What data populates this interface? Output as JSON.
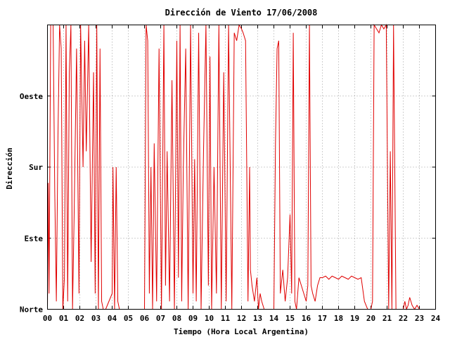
{
  "chart_data": {
    "type": "line",
    "title": "Dirección de Viento 17/06/2008",
    "xlabel": "Tiempo (Hora Local Argentina)",
    "ylabel": "Dirección",
    "xlim": [
      0,
      24
    ],
    "ylim": [
      0,
      360
    ],
    "x_ticks": [
      "00",
      "01",
      "02",
      "03",
      "04",
      "05",
      "06",
      "07",
      "08",
      "09",
      "10",
      "11",
      "12",
      "13",
      "14",
      "15",
      "16",
      "17",
      "18",
      "19",
      "20",
      "21",
      "22",
      "23",
      "24"
    ],
    "y_ticks": [
      {
        "value": 0,
        "label": "Norte"
      },
      {
        "value": 90,
        "label": "Este"
      },
      {
        "value": 180,
        "label": "Sur"
      },
      {
        "value": 270,
        "label": "Oeste"
      }
    ],
    "grid": true,
    "colors": {
      "series": "#e00000",
      "grid": "#a0a0a0",
      "frame": "#000000"
    },
    "series": [
      {
        "values": [
          [
            0.0,
            0
          ],
          [
            0.05,
            160
          ],
          [
            0.1,
            20
          ],
          [
            0.2,
            360
          ],
          [
            0.35,
            360
          ],
          [
            0.45,
            150
          ],
          [
            0.55,
            10
          ],
          [
            0.65,
            220
          ],
          [
            0.75,
            360
          ],
          [
            0.85,
            330
          ],
          [
            0.95,
            0
          ],
          [
            1.05,
            40
          ],
          [
            1.15,
            360
          ],
          [
            1.25,
            10
          ],
          [
            1.35,
            300
          ],
          [
            1.45,
            360
          ],
          [
            1.55,
            0
          ],
          [
            1.65,
            120
          ],
          [
            1.8,
            330
          ],
          [
            1.95,
            20
          ],
          [
            2.05,
            360
          ],
          [
            2.2,
            180
          ],
          [
            2.3,
            340
          ],
          [
            2.4,
            200
          ],
          [
            2.55,
            360
          ],
          [
            2.7,
            60
          ],
          [
            2.85,
            300
          ],
          [
            2.95,
            20
          ],
          [
            3.05,
            360
          ],
          [
            3.15,
            0
          ],
          [
            3.25,
            330
          ],
          [
            3.35,
            10
          ],
          [
            3.45,
            0
          ],
          [
            3.6,
            0
          ],
          [
            3.8,
            10
          ],
          [
            4.0,
            20
          ],
          [
            4.05,
            180
          ],
          [
            4.15,
            0
          ],
          [
            4.25,
            180
          ],
          [
            4.35,
            10
          ],
          [
            4.45,
            0
          ],
          [
            5.0,
            0
          ],
          [
            6.0,
            0
          ],
          [
            6.1,
            360
          ],
          [
            6.2,
            340
          ],
          [
            6.3,
            20
          ],
          [
            6.4,
            180
          ],
          [
            6.5,
            0
          ],
          [
            6.6,
            210
          ],
          [
            6.75,
            10
          ],
          [
            6.9,
            330
          ],
          [
            7.05,
            0
          ],
          [
            7.2,
            360
          ],
          [
            7.3,
            30
          ],
          [
            7.4,
            200
          ],
          [
            7.55,
            10
          ],
          [
            7.7,
            290
          ],
          [
            7.85,
            0
          ],
          [
            8.0,
            340
          ],
          [
            8.1,
            40
          ],
          [
            8.2,
            360
          ],
          [
            8.3,
            10
          ],
          [
            8.4,
            180
          ],
          [
            8.55,
            330
          ],
          [
            8.7,
            0
          ],
          [
            8.85,
            360
          ],
          [
            9.0,
            20
          ],
          [
            9.1,
            190
          ],
          [
            9.2,
            10
          ],
          [
            9.35,
            350
          ],
          [
            9.5,
            0
          ],
          [
            9.65,
            200
          ],
          [
            9.8,
            360
          ],
          [
            9.95,
            30
          ],
          [
            10.05,
            320
          ],
          [
            10.15,
            0
          ],
          [
            10.3,
            180
          ],
          [
            10.45,
            20
          ],
          [
            10.6,
            360
          ],
          [
            10.75,
            0
          ],
          [
            10.9,
            300
          ],
          [
            11.05,
            10
          ],
          [
            11.2,
            360
          ],
          [
            11.3,
            180
          ],
          [
            11.4,
            0
          ],
          [
            11.55,
            350
          ],
          [
            11.7,
            340
          ],
          [
            11.85,
            360
          ],
          [
            12.0,
            355
          ],
          [
            12.1,
            350
          ],
          [
            12.25,
            340
          ],
          [
            12.4,
            10
          ],
          [
            12.5,
            180
          ],
          [
            12.55,
            50
          ],
          [
            12.65,
            30
          ],
          [
            12.8,
            10
          ],
          [
            12.95,
            40
          ],
          [
            13.05,
            0
          ],
          [
            13.15,
            20
          ],
          [
            13.25,
            10
          ],
          [
            13.4,
            0
          ],
          [
            14.0,
            0
          ],
          [
            14.1,
            210
          ],
          [
            14.2,
            330
          ],
          [
            14.3,
            340
          ],
          [
            14.4,
            20
          ],
          [
            14.55,
            50
          ],
          [
            14.7,
            10
          ],
          [
            14.85,
            40
          ],
          [
            15.0,
            120
          ],
          [
            15.1,
            20
          ],
          [
            15.2,
            350
          ],
          [
            15.3,
            10
          ],
          [
            15.4,
            0
          ],
          [
            15.55,
            40
          ],
          [
            15.7,
            30
          ],
          [
            15.85,
            20
          ],
          [
            16.0,
            10
          ],
          [
            16.1,
            30
          ],
          [
            16.2,
            360
          ],
          [
            16.3,
            30
          ],
          [
            16.4,
            20
          ],
          [
            16.55,
            10
          ],
          [
            16.7,
            30
          ],
          [
            16.85,
            40
          ],
          [
            17.0,
            40
          ],
          [
            17.2,
            42
          ],
          [
            17.4,
            38
          ],
          [
            17.6,
            42
          ],
          [
            17.8,
            40
          ],
          [
            18.0,
            38
          ],
          [
            18.2,
            42
          ],
          [
            18.4,
            40
          ],
          [
            18.6,
            38
          ],
          [
            18.8,
            42
          ],
          [
            19.0,
            40
          ],
          [
            19.2,
            38
          ],
          [
            19.4,
            40
          ],
          [
            19.6,
            10
          ],
          [
            19.8,
            0
          ],
          [
            20.0,
            0
          ],
          [
            20.1,
            10
          ],
          [
            20.2,
            360
          ],
          [
            20.35,
            355
          ],
          [
            20.5,
            350
          ],
          [
            20.65,
            360
          ],
          [
            20.8,
            355
          ],
          [
            20.95,
            360
          ],
          [
            21.1,
            0
          ],
          [
            21.2,
            200
          ],
          [
            21.3,
            0
          ],
          [
            21.4,
            360
          ],
          [
            21.55,
            0
          ],
          [
            21.7,
            0
          ],
          [
            21.85,
            0
          ],
          [
            22.0,
            0
          ],
          [
            22.1,
            10
          ],
          [
            22.2,
            0
          ],
          [
            22.3,
            5
          ],
          [
            22.4,
            15
          ],
          [
            22.55,
            5
          ],
          [
            22.7,
            0
          ],
          [
            22.85,
            5
          ],
          [
            23.0,
            0
          ]
        ]
      }
    ]
  }
}
